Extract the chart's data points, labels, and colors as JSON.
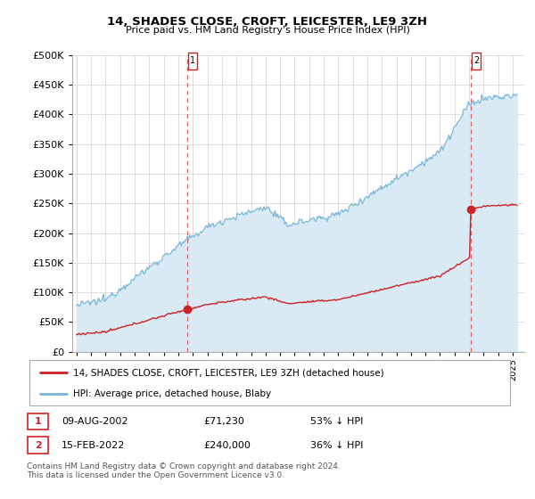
{
  "title": "14, SHADES CLOSE, CROFT, LEICESTER, LE9 3ZH",
  "subtitle": "Price paid vs. HM Land Registry's House Price Index (HPI)",
  "ylabel_ticks": [
    "£0",
    "£50K",
    "£100K",
    "£150K",
    "£200K",
    "£250K",
    "£300K",
    "£350K",
    "£400K",
    "£450K",
    "£500K"
  ],
  "ytick_values": [
    0,
    50000,
    100000,
    150000,
    200000,
    250000,
    300000,
    350000,
    400000,
    450000,
    500000
  ],
  "ylim": [
    0,
    500000
  ],
  "xlim_start": 1994.7,
  "xlim_end": 2025.8,
  "hpi_color": "#7ab8d9",
  "hpi_fill_color": "#daeaf5",
  "price_color": "#cc2222",
  "dashed_line_color": "#e06060",
  "sale1_x": 2002.6,
  "sale1_y": 71230,
  "sale2_x": 2022.1,
  "sale2_y": 240000,
  "legend_label1": "14, SHADES CLOSE, CROFT, LEICESTER, LE9 3ZH (detached house)",
  "legend_label2": "HPI: Average price, detached house, Blaby",
  "table_row1": [
    "1",
    "09-AUG-2002",
    "£71,230",
    "53% ↓ HPI"
  ],
  "table_row2": [
    "2",
    "15-FEB-2022",
    "£240,000",
    "36% ↓ HPI"
  ],
  "footnote1": "Contains HM Land Registry data © Crown copyright and database right 2024.",
  "footnote2": "This data is licensed under the Open Government Licence v3.0.",
  "background_color": "#ffffff",
  "grid_color": "#d0d0d0"
}
